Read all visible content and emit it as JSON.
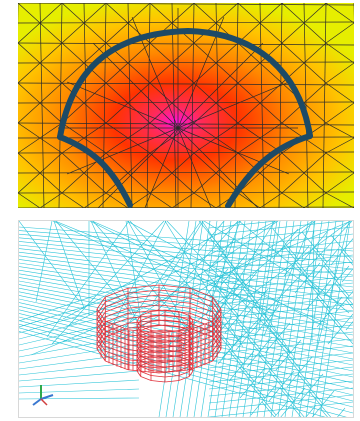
{
  "top_panel": {
    "colors": {
      "edge": "#d8f000",
      "mid": "#ff8c00",
      "hot": "#ff2200",
      "peak": "#ff00d0",
      "outline": "#1d4a66",
      "mesh": "#2a2a2a"
    }
  },
  "bottom_panel": {
    "corner_label": "",
    "colors": {
      "mesh": "#2bc4d8",
      "structure": "#e0303a",
      "axis_x": "#3a78d0",
      "axis_y": "#2fa84a",
      "axis_z": "#d04040"
    }
  }
}
